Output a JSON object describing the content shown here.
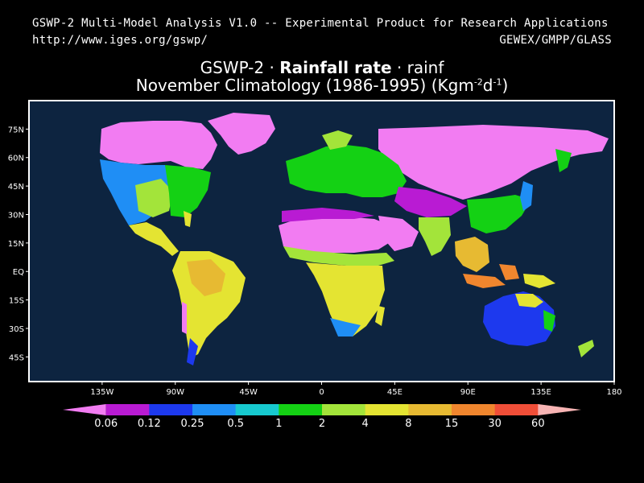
{
  "header": {
    "line1": "GSWP-2 Multi-Model Analysis V1.0 -- Experimental Product for Research Applications",
    "url": "http://www.iges.org/gswp/",
    "right": "GEWEX/GMPP/GLASS"
  },
  "title": {
    "model": "GSWP-2",
    "sep": "·",
    "variable": "Rainfall rate",
    "short": "rainf",
    "period": "November Climatology (1986-1995)",
    "units_base": "(Kgm",
    "units_exp1": "-2",
    "units_mid": "d",
    "units_exp2": "-1",
    "units_end": ")"
  },
  "chart_data": {
    "type": "heatmap",
    "map_projection": "latitude-longitude",
    "x_ticks": [
      "135W",
      "90W",
      "45W",
      "0",
      "45E",
      "90E",
      "135E",
      "180"
    ],
    "y_ticks": [
      "75N",
      "60N",
      "45N",
      "30N",
      "15N",
      "EQ",
      "15S",
      "30S",
      "45S"
    ],
    "background_color": "#0d2440",
    "colorbar": {
      "levels": [
        "0.06",
        "0.12",
        "0.25",
        "0.5",
        "1",
        "2",
        "4",
        "8",
        "15",
        "30",
        "60"
      ],
      "colors": [
        "#f27cf2",
        "#b91bd3",
        "#1d39ee",
        "#1f8ef5",
        "#17c9cf",
        "#14d114",
        "#a3e43a",
        "#e4e432",
        "#e7ba32",
        "#f0862e",
        "#f04e38",
        "#f7b4b4"
      ]
    }
  }
}
